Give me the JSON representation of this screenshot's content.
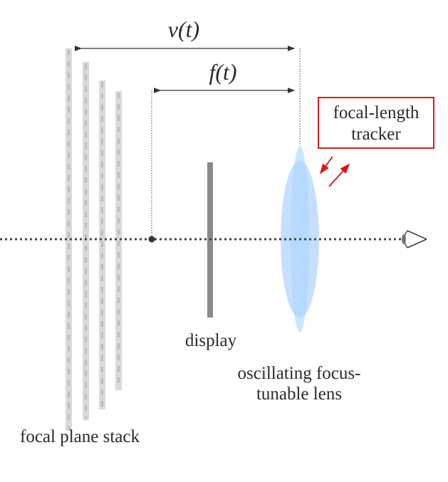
{
  "labels": {
    "v_distance": "v(t)",
    "f_distance": "f(t)",
    "tracker_line1": "focal-length",
    "tracker_line2": "tracker",
    "display": "display",
    "lens_line1": "oscillating focus-",
    "lens_line2": "tunable lens",
    "stack": "focal plane stack"
  },
  "colors": {
    "tracker_border": "#d42020",
    "tracker_arrows": "#e01010",
    "lens_outer": "#c8e8ff",
    "lens_inner": "#b0d4ff",
    "display": "#8a8a8a",
    "planes": "#dadada"
  }
}
